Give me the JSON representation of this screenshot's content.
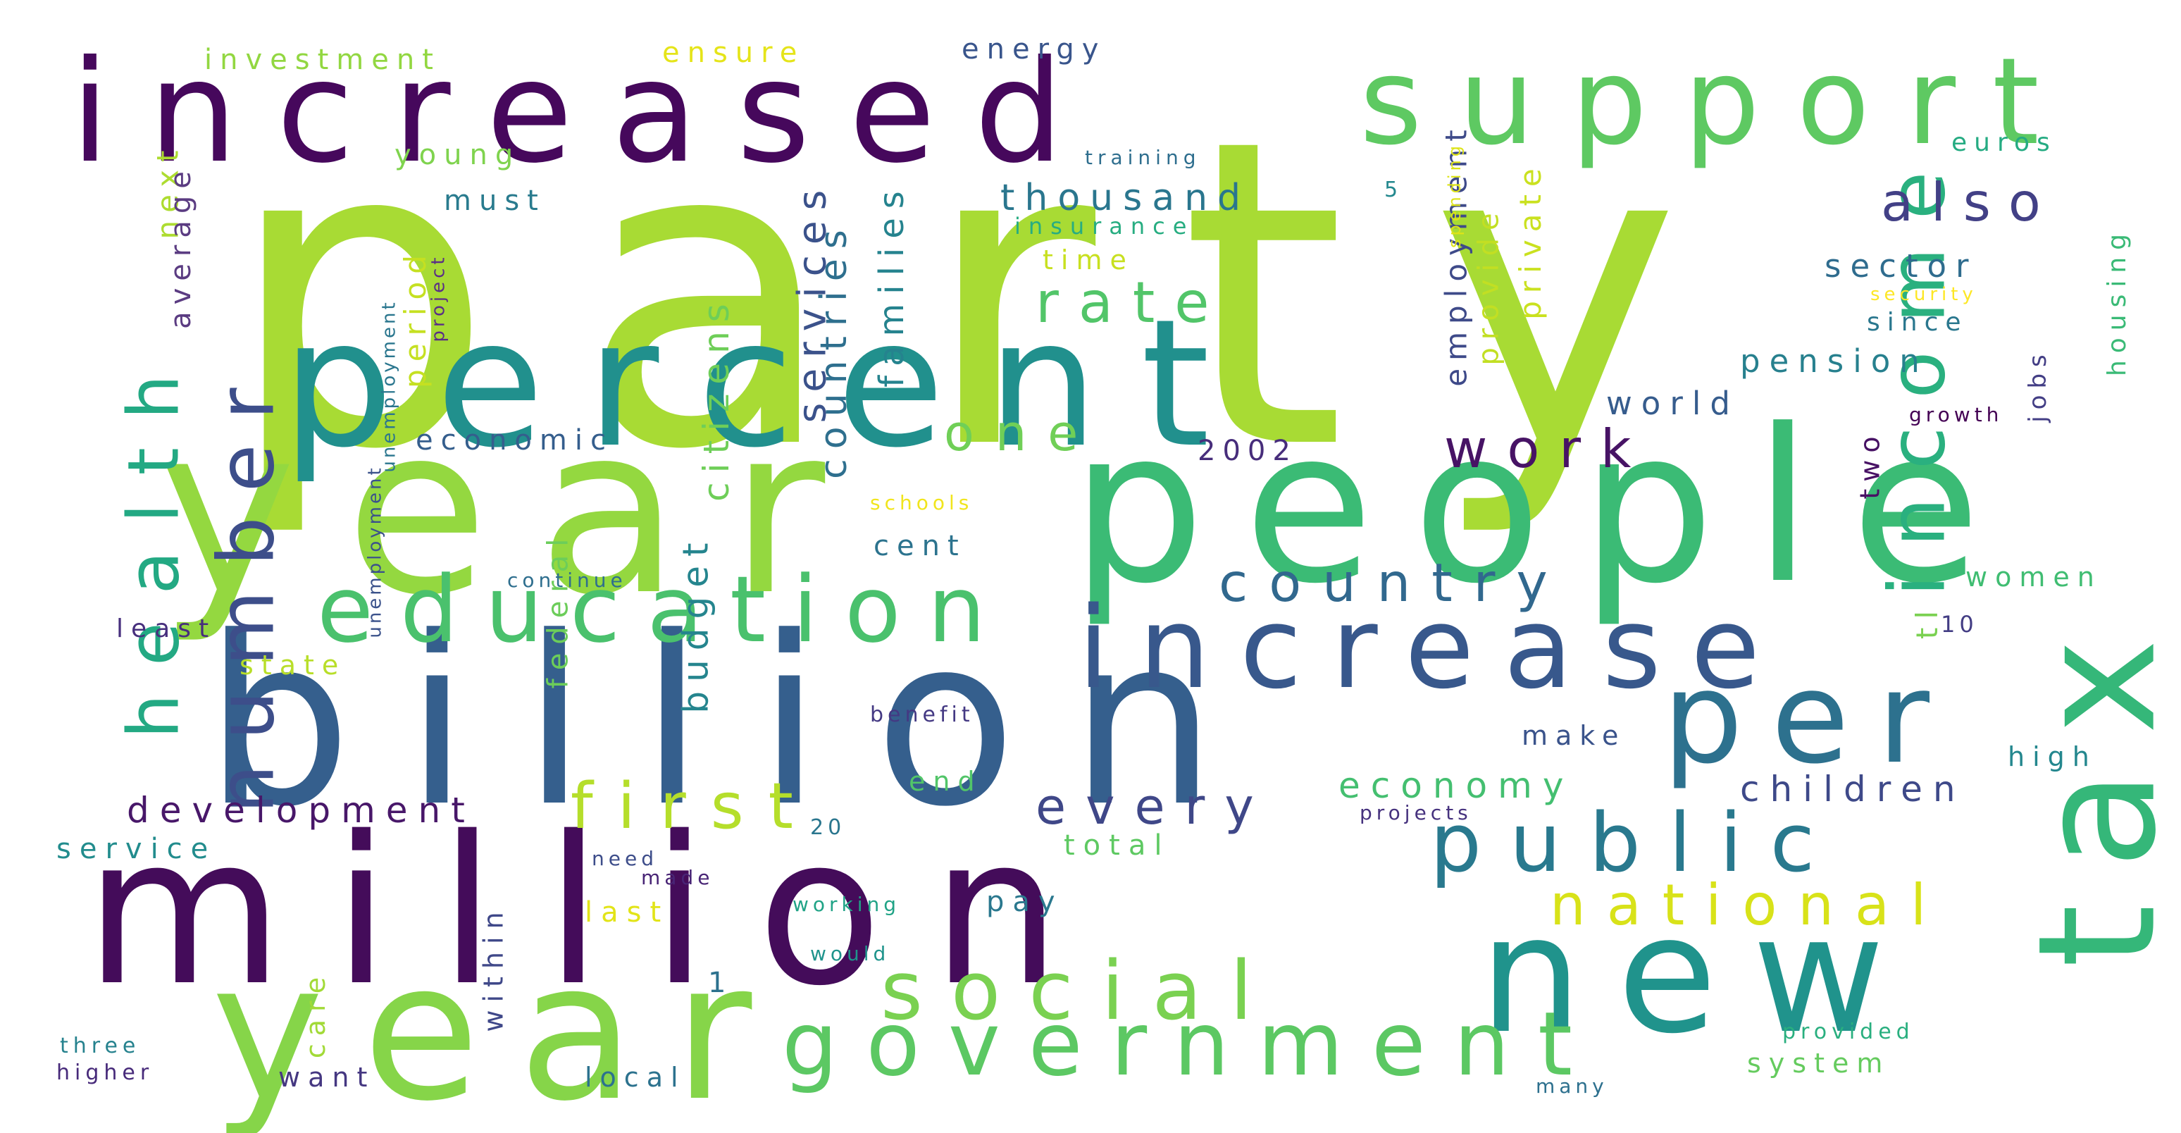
{
  "words": [
    {
      "text": "party",
      "color": "#a8db34"
    },
    {
      "text": "year",
      "color": "#94d840"
    },
    {
      "text": "billion",
      "color": "#355f8d"
    },
    {
      "text": "million",
      "color": "#440c5a"
    },
    {
      "text": "percent",
      "color": "#21908d"
    },
    {
      "text": "people",
      "color": "#3bbb75"
    },
    {
      "text": "increased",
      "color": "#46085c"
    },
    {
      "text": "support",
      "color": "#5ec962"
    },
    {
      "text": "year",
      "color": "#86d549"
    },
    {
      "text": "new",
      "color": "#20938c"
    },
    {
      "text": "tax",
      "color": "#35b779"
    },
    {
      "text": "increase",
      "color": "#38588c"
    },
    {
      "text": "education",
      "color": "#4ac16d"
    },
    {
      "text": "per",
      "color": "#2d718e"
    },
    {
      "text": "government",
      "color": "#5cc863"
    },
    {
      "text": "social",
      "color": "#7ad151"
    },
    {
      "text": "public",
      "color": "#29798e"
    },
    {
      "text": "health",
      "color": "#23a983"
    },
    {
      "text": "number",
      "color": "#3d4e8a"
    },
    {
      "text": "income",
      "color": "#2ab07f"
    },
    {
      "text": "first",
      "color": "#b5de2b"
    },
    {
      "text": "national",
      "color": "#d8e219"
    },
    {
      "text": "country",
      "color": "#31688e"
    },
    {
      "text": "work",
      "color": "#471365"
    },
    {
      "text": "every",
      "color": "#3f4788"
    },
    {
      "text": "rate",
      "color": "#52c569"
    },
    {
      "text": "also",
      "color": "#424086"
    },
    {
      "text": "one",
      "color": "#70cf57"
    },
    {
      "text": "development",
      "color": "#481769"
    },
    {
      "text": "economy",
      "color": "#44bf70"
    },
    {
      "text": "children",
      "color": "#3e4989"
    },
    {
      "text": "services",
      "color": "#3b528b"
    },
    {
      "text": "countries",
      "color": "#2e6f8e"
    },
    {
      "text": "citizens",
      "color": "#6ece58"
    },
    {
      "text": "budget",
      "color": "#25858e"
    },
    {
      "text": "families",
      "color": "#25838e"
    },
    {
      "text": "thousand",
      "color": "#2a768e"
    },
    {
      "text": "employment",
      "color": "#3e4a89"
    },
    {
      "text": "private",
      "color": "#cae11f"
    },
    {
      "text": "provide",
      "color": "#c2df23"
    },
    {
      "text": "sector",
      "color": "#2f6c8e"
    },
    {
      "text": "pension",
      "color": "#27808e"
    },
    {
      "text": "world",
      "color": "#365c8d"
    },
    {
      "text": "economic",
      "color": "#355e8d"
    },
    {
      "text": "2002",
      "color": "#472d7b"
    },
    {
      "text": "young",
      "color": "#7fd34e"
    },
    {
      "text": "must",
      "color": "#297b8e"
    },
    {
      "text": "period",
      "color": "#c5e021"
    },
    {
      "text": "next",
      "color": "#addc30"
    },
    {
      "text": "average",
      "color": "#5b3c82"
    },
    {
      "text": "investment",
      "color": "#92d741"
    },
    {
      "text": "ensure",
      "color": "#e5e419"
    },
    {
      "text": "energy",
      "color": "#39558c"
    },
    {
      "text": "federal",
      "color": "#6ccd5a"
    },
    {
      "text": "cent",
      "color": "#2c738e"
    },
    {
      "text": "state",
      "color": "#b8de29"
    },
    {
      "text": "least",
      "color": "#472f7d"
    },
    {
      "text": "service",
      "color": "#228c8d"
    },
    {
      "text": "total",
      "color": "#5ec962"
    },
    {
      "text": "pay",
      "color": "#2a788e"
    },
    {
      "text": "last",
      "color": "#e2e418"
    },
    {
      "text": "within",
      "color": "#3f4889"
    },
    {
      "text": "care",
      "color": "#a2da37"
    },
    {
      "text": "want",
      "color": "#453781"
    },
    {
      "text": "local",
      "color": "#2c728e"
    },
    {
      "text": "system",
      "color": "#65cb5e"
    },
    {
      "text": "high",
      "color": "#24878e"
    },
    {
      "text": "make",
      "color": "#3a538b"
    },
    {
      "text": "women",
      "color": "#40bd72"
    },
    {
      "text": "euros",
      "color": "#25ab82"
    },
    {
      "text": "since",
      "color": "#2a778e"
    },
    {
      "text": "housing",
      "color": "#3aba76"
    },
    {
      "text": "jobs",
      "color": "#433e85"
    },
    {
      "text": "two",
      "color": "#471164"
    },
    {
      "text": "growth",
      "color": "#440154"
    },
    {
      "text": "time",
      "color": "#c8e020"
    },
    {
      "text": "insurance",
      "color": "#27ad81"
    },
    {
      "text": "training",
      "color": "#2e6e8e"
    },
    {
      "text": "spending",
      "color": "#dde318"
    },
    {
      "text": "security",
      "color": "#fde725"
    },
    {
      "text": "project",
      "color": "#5a2e86"
    },
    {
      "text": "unemployment",
      "color": "#2a768e"
    },
    {
      "text": "unemployment",
      "color": "#3b528b"
    },
    {
      "text": "continue",
      "color": "#2e6e8e"
    },
    {
      "text": "schools",
      "color": "#f1e51d"
    },
    {
      "text": "benefit",
      "color": "#443983"
    },
    {
      "text": "end",
      "color": "#52c569"
    },
    {
      "text": "projects",
      "color": "#46327e"
    },
    {
      "text": "20",
      "color": "#2a768e"
    },
    {
      "text": "need",
      "color": "#3d4d8a"
    },
    {
      "text": "made",
      "color": "#482475"
    },
    {
      "text": "working",
      "color": "#20a386"
    },
    {
      "text": "would",
      "color": "#1f948c"
    },
    {
      "text": "three",
      "color": "#26828e"
    },
    {
      "text": "higher",
      "color": "#472a7a"
    },
    {
      "text": "provided",
      "color": "#29af7f"
    },
    {
      "text": "many",
      "color": "#2d708e"
    },
    {
      "text": "1",
      "color": "#2c718e"
    },
    {
      "text": "10",
      "color": "#433d84"
    },
    {
      "text": "5",
      "color": "#23888e"
    },
    {
      "text": "tl",
      "color": "#7ad151"
    }
  ]
}
